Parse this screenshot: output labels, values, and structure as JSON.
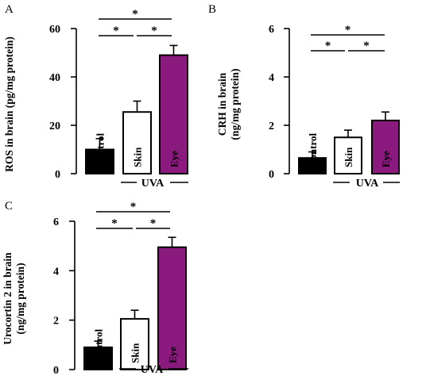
{
  "chart_data": [
    {
      "type": "bar",
      "panel": "A",
      "ylabel": "ROS in brain (pg/mg protein)",
      "ylim": [
        0,
        60
      ],
      "yticks": [
        "0",
        "20",
        "40",
        "60"
      ],
      "categories": [
        "Control",
        "Skin",
        "Eye"
      ],
      "values": [
        10,
        25.5,
        49
      ],
      "errors": [
        4.5,
        4.5,
        4
      ],
      "bar_colors": [
        "#000000",
        "#ffffff",
        "#8b1a7e"
      ],
      "label_colors": [
        "#000000",
        "#000000",
        "#ffffff"
      ],
      "group_label": "UVA",
      "significance": "*"
    },
    {
      "type": "bar",
      "panel": "B",
      "ylabel": "CRH in brain (ng/mg protein)",
      "ylabel_lines": [
        "CRH in brain",
        "(ng/mg protein)"
      ],
      "ylim": [
        0,
        6
      ],
      "yticks": [
        "0",
        "2",
        "4",
        "6"
      ],
      "categories": [
        "Control",
        "Skin",
        "Eye"
      ],
      "values": [
        0.65,
        1.5,
        2.2
      ],
      "errors": [
        0.25,
        0.3,
        0.35
      ],
      "bar_colors": [
        "#000000",
        "#ffffff",
        "#8b1a7e"
      ],
      "label_colors": [
        "#000000",
        "#000000",
        "#ffffff"
      ],
      "group_label": "UVA",
      "significance": "*"
    },
    {
      "type": "bar",
      "panel": "C",
      "ylabel": "Urocortin 2 in brain (ng/mg protein)",
      "ylabel_lines": [
        "Urocortin 2 in brain",
        "(ng/mg protein)"
      ],
      "ylim": [
        0,
        6
      ],
      "yticks": [
        "0",
        "2",
        "4",
        "6"
      ],
      "categories": [
        "Control",
        "Skin",
        "Eye"
      ],
      "values": [
        0.9,
        2.05,
        4.95
      ],
      "errors": [
        0.25,
        0.35,
        0.4
      ],
      "bar_colors": [
        "#000000",
        "#ffffff",
        "#8b1a7e"
      ],
      "label_colors": [
        "#000000",
        "#000000",
        "#ffffff"
      ],
      "group_label": "UVA",
      "significance": "*"
    }
  ]
}
